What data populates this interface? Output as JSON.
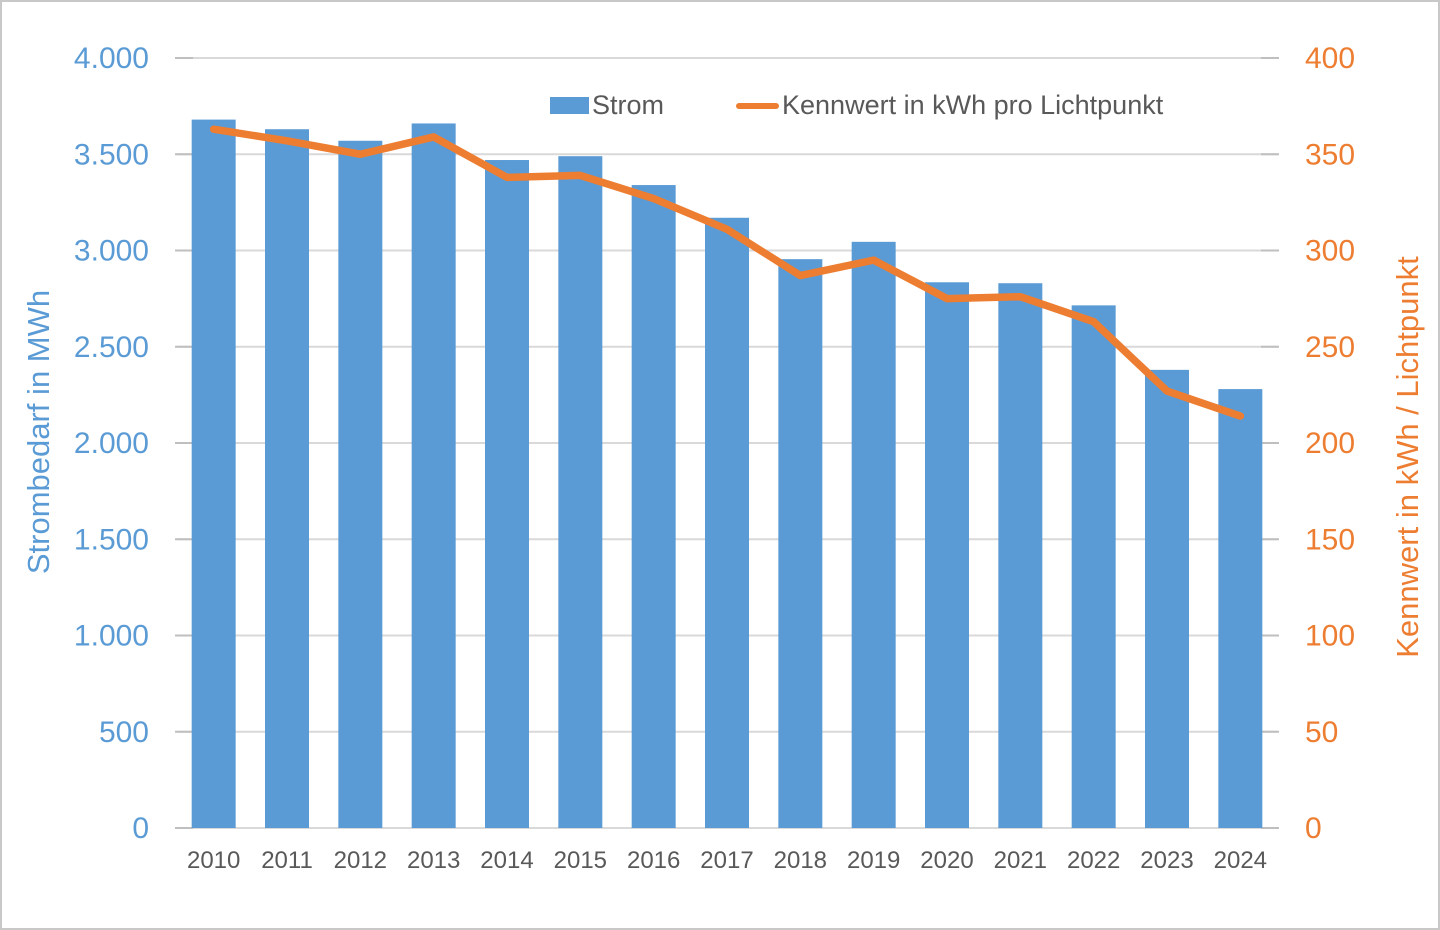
{
  "chart_data": {
    "type": "bar",
    "title": "",
    "categories": [
      "2010",
      "2011",
      "2012",
      "2013",
      "2014",
      "2015",
      "2016",
      "2017",
      "2018",
      "2019",
      "2020",
      "2021",
      "2022",
      "2023",
      "2024"
    ],
    "series": [
      {
        "name": "Strom",
        "type": "bar",
        "axis": "left",
        "color": "#5B9BD5",
        "values": [
          3680,
          3630,
          3570,
          3660,
          3470,
          3490,
          3340,
          3170,
          2955,
          3045,
          2835,
          2830,
          2715,
          2380,
          2280
        ]
      },
      {
        "name": "Kennwert in kWh pro Lichtpunkt",
        "type": "line",
        "axis": "right",
        "color": "#ED7D31",
        "values": [
          363,
          357,
          350,
          359,
          338,
          339,
          327,
          311,
          287,
          295,
          275,
          276,
          263,
          227,
          214
        ]
      }
    ],
    "left_axis": {
      "title": "Strombedarf in MWh",
      "min": 0,
      "max": 4000,
      "tick_step": 500,
      "tick_labels": [
        "0",
        "500",
        "1.000",
        "1.500",
        "2.000",
        "2.500",
        "3.000",
        "3.500",
        "4.000"
      ],
      "color": "#5B9BD5"
    },
    "right_axis": {
      "title": "Kennwert in kWh / Lichtpunkt",
      "min": 0,
      "max": 400,
      "tick_step": 50,
      "tick_labels": [
        "0",
        "50",
        "100",
        "150",
        "200",
        "250",
        "300",
        "350",
        "400"
      ],
      "color": "#ED7D31"
    },
    "legend": {
      "position": "top",
      "items": [
        {
          "label": "Strom",
          "swatch": "bar",
          "color": "#5B9BD5"
        },
        {
          "label": "Kennwert in kWh pro Lichtpunkt",
          "swatch": "line",
          "color": "#ED7D31"
        }
      ]
    },
    "grid": true,
    "colors": {
      "grid": "#D9D9D9",
      "tick": "#BFBFBF",
      "text": "#595959",
      "background": "#FFFFFF",
      "border": "#C8C8C8"
    }
  }
}
